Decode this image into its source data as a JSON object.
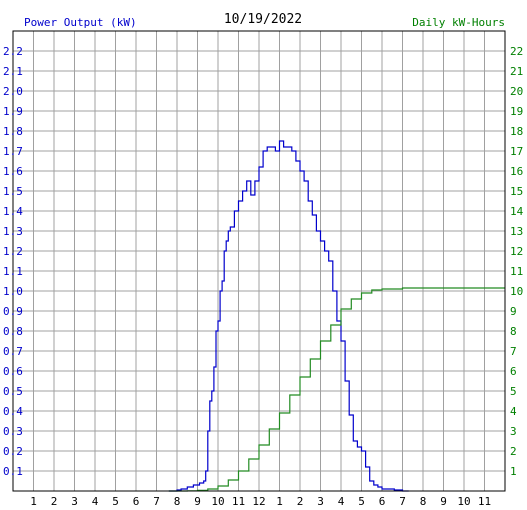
{
  "chart_data": {
    "type": "line",
    "title": "10/19/2022",
    "ylabel_left": "Power Output (kW)",
    "ylabel_right": "Daily kW-Hours",
    "colors": {
      "left_axis": "#0000cc",
      "right_axis": "#008000",
      "power_line": "#0000cc",
      "energy_line": "#228b22",
      "grid": "#a0a0a0",
      "frame": "#000000"
    },
    "x_range": [
      0,
      24
    ],
    "ylim_left": [
      0,
      2.3
    ],
    "ylim_right": [
      0,
      23
    ],
    "x_tick_labels": [
      "1",
      "2",
      "3",
      "4",
      "5",
      "6",
      "7",
      "8",
      "9",
      "10",
      "11",
      "12",
      "1",
      "2",
      "3",
      "4",
      "5",
      "6",
      "7",
      "8",
      "9",
      "10",
      "11"
    ],
    "y_left_tick_labels": [
      "0.1",
      "0.2",
      "0.3",
      "0.4",
      "0.5",
      "0.6",
      "0.7",
      "0.8",
      "0.9",
      "1.0",
      "1.1",
      "1.2",
      "1.3",
      "1.4",
      "1.5",
      "1.6",
      "1.7",
      "1.8",
      "1.9",
      "2.0",
      "2.1",
      "2.2"
    ],
    "y_right_tick_labels": [
      "1",
      "2",
      "3",
      "4",
      "5",
      "6",
      "7",
      "8",
      "9",
      "10",
      "11",
      "12",
      "13",
      "14",
      "15",
      "16",
      "17",
      "18",
      "19",
      "20",
      "21",
      "22"
    ],
    "grid": true,
    "series": [
      {
        "axis": "left",
        "x": [
          7.6,
          8.0,
          8.2,
          8.5,
          8.8,
          9.1,
          9.3,
          9.4,
          9.5,
          9.6,
          9.7,
          9.8,
          9.9,
          10.0,
          10.1,
          10.2,
          10.3,
          10.4,
          10.5,
          10.6,
          10.8,
          11.0,
          11.2,
          11.4,
          11.6,
          11.8,
          12.0,
          12.2,
          12.4,
          12.6,
          12.8,
          13.0,
          13.2,
          13.4,
          13.6,
          13.8,
          14.0,
          14.2,
          14.4,
          14.6,
          14.8,
          15.0,
          15.2,
          15.4,
          15.6,
          15.8,
          16.0,
          16.2,
          16.4,
          16.6,
          16.8,
          17.0,
          17.2,
          17.4,
          17.6,
          17.8,
          18.0,
          18.2,
          18.4,
          18.6,
          18.8,
          19.0,
          19.2,
          19.3
        ],
        "y": [
          0.0,
          0.005,
          0.01,
          0.02,
          0.03,
          0.04,
          0.05,
          0.1,
          0.3,
          0.45,
          0.5,
          0.62,
          0.8,
          0.85,
          1.0,
          1.05,
          1.2,
          1.25,
          1.3,
          1.32,
          1.4,
          1.45,
          1.5,
          1.55,
          1.48,
          1.55,
          1.62,
          1.7,
          1.72,
          1.72,
          1.7,
          1.75,
          1.72,
          1.72,
          1.7,
          1.65,
          1.6,
          1.55,
          1.45,
          1.38,
          1.3,
          1.25,
          1.2,
          1.15,
          1.0,
          0.85,
          0.75,
          0.55,
          0.38,
          0.25,
          0.22,
          0.2,
          0.12,
          0.05,
          0.03,
          0.02,
          0.01,
          0.01,
          0.01,
          0.005,
          0.005,
          0.0,
          0.0,
          0.0
        ]
      },
      {
        "axis": "right",
        "x": [
          7.6,
          8.5,
          9.0,
          9.5,
          10.0,
          10.5,
          11.0,
          11.5,
          12.0,
          12.5,
          13.0,
          13.5,
          14.0,
          14.5,
          15.0,
          15.5,
          16.0,
          16.5,
          17.0,
          17.5,
          18.0,
          19.0,
          20.0,
          21.0,
          22.0,
          23.0,
          23.5,
          24.0
        ],
        "y": [
          0.0,
          0.01,
          0.03,
          0.1,
          0.25,
          0.55,
          1.0,
          1.6,
          2.3,
          3.1,
          3.9,
          4.8,
          5.7,
          6.6,
          7.5,
          8.3,
          9.1,
          9.6,
          9.9,
          10.05,
          10.1,
          10.15,
          10.15,
          10.15,
          10.15,
          10.15,
          10.15,
          10.15
        ]
      }
    ]
  }
}
